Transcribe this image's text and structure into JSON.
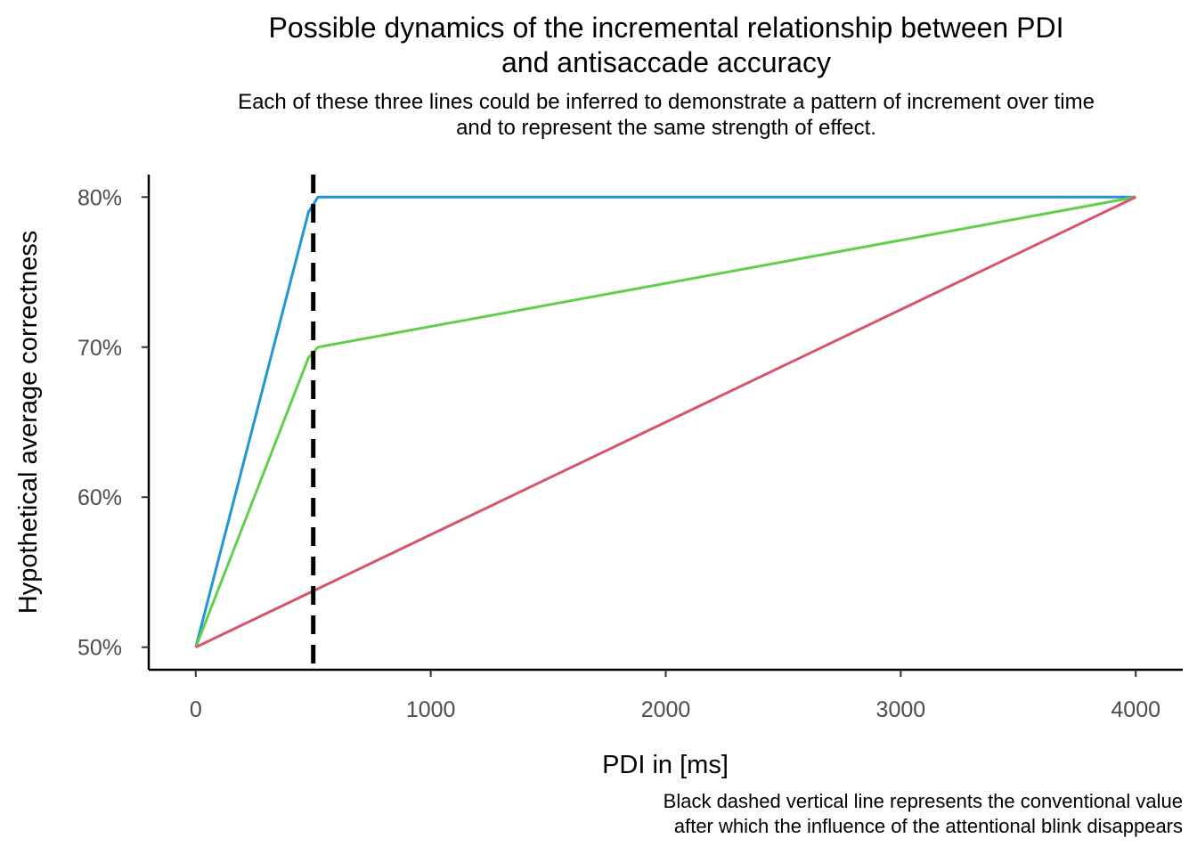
{
  "chart_data": {
    "type": "line",
    "title": "Possible dynamics of the incremental relationship between PDI\nand antisaccade accuracy",
    "subtitle": "Each of these three lines could be inferred to demonstrate a pattern of increment over time\nand to represent the same strength of effect.",
    "xlabel": "PDI in [ms]",
    "ylabel": "Hypothetical average correctness",
    "caption": "Black dashed vertical line represents the conventional value\nafter which the influence of the attentional blink disappears",
    "xlim": [
      -200,
      4200
    ],
    "ylim": [
      0.485,
      0.815
    ],
    "x_ticks": [
      0,
      1000,
      2000,
      3000,
      4000
    ],
    "x_tick_labels": [
      "0",
      "1000",
      "2000",
      "3000",
      "4000"
    ],
    "y_ticks": [
      0.5,
      0.6,
      0.7,
      0.8
    ],
    "y_tick_labels": [
      "50%",
      "60%",
      "70%",
      "80%"
    ],
    "grid": false,
    "legend": "none",
    "series": [
      {
        "color": "#2196d6",
        "points": [
          [
            0,
            0.5
          ],
          [
            480,
            0.79
          ],
          [
            520,
            0.8
          ],
          [
            4000,
            0.8
          ]
        ]
      },
      {
        "color": "#61cf4c",
        "points": [
          [
            0,
            0.5
          ],
          [
            480,
            0.693
          ],
          [
            520,
            0.7
          ],
          [
            4000,
            0.8
          ]
        ]
      },
      {
        "color": "#d8546a",
        "points": [
          [
            0,
            0.5
          ],
          [
            4000,
            0.8
          ]
        ]
      }
    ],
    "reference_line": {
      "x": 500,
      "style": "dashed",
      "color": "#000000"
    }
  }
}
